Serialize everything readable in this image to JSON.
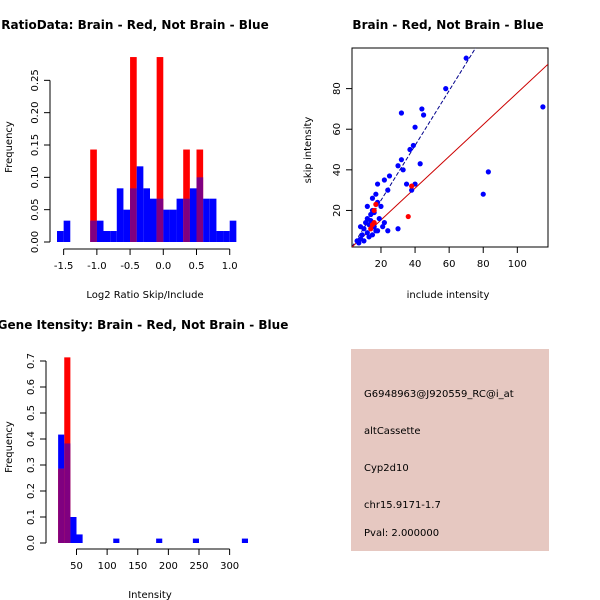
{
  "colors": {
    "red": "#ff0000",
    "blue": "#0000ff",
    "overlap": "#800080",
    "info_bg": "#e6c8c1",
    "pval": "#990000",
    "line_blue": "#00008b",
    "line_red": "#cc0000"
  },
  "chart_data": [
    {
      "type": "bar",
      "kind": "overlaid-histogram",
      "title": "RatioData: Brain - Red, Not Brain - Blue",
      "xlabel": "Log2 Ratio Skip/Include",
      "ylabel": "Frequency",
      "xlim": [
        -1.6,
        1.2
      ],
      "ylim": [
        0,
        0.3
      ],
      "bin_width": 0.1,
      "xticks": [
        -1.5,
        -1.0,
        -0.5,
        0.0,
        0.5,
        1.0
      ],
      "xtick_labels": [
        "-1.5",
        "-1.0",
        "-0.5",
        "0.0",
        "0.5",
        "1.0"
      ],
      "yticks": [
        0,
        0.05,
        0.1,
        0.15,
        0.2,
        0.25
      ],
      "ytick_labels": [
        "0.00",
        "0.05",
        "0.10",
        "0.15",
        "0.20",
        "0.25"
      ],
      "series": [
        {
          "name": "Not Brain",
          "color": "blue",
          "bins_start": [
            -1.6,
            -1.5,
            -1.4,
            -1.3,
            -1.2,
            -1.1,
            -1.0,
            -0.9,
            -0.8,
            -0.7,
            -0.6,
            -0.5,
            -0.4,
            -0.3,
            -0.2,
            -0.1,
            0.0,
            0.1,
            0.2,
            0.3,
            0.4,
            0.5,
            0.6,
            0.7,
            0.8,
            0.9,
            1.0,
            1.1
          ],
          "values": [
            0.017,
            0.033,
            0,
            0,
            0,
            0.033,
            0.033,
            0.017,
            0.017,
            0.083,
            0.05,
            0.083,
            0.117,
            0.083,
            0.067,
            0.067,
            0.05,
            0.05,
            0.067,
            0.067,
            0.083,
            0.1,
            0.067,
            0.067,
            0.017,
            0.017,
            0.033,
            0
          ]
        },
        {
          "name": "Brain",
          "color": "red",
          "bins_start": [
            -1.1,
            -0.5,
            -0.1,
            0.3,
            0.5
          ],
          "values": [
            0.143,
            0.286,
            0.286,
            0.143,
            0.143
          ]
        }
      ]
    },
    {
      "type": "scatter",
      "title": "Brain - Red, Not Brain - Blue",
      "xlabel": "include intensity",
      "ylabel": "skip intensity",
      "xlim": [
        3,
        118
      ],
      "ylim": [
        2,
        100
      ],
      "xticks": [
        20,
        40,
        60,
        80,
        100
      ],
      "xtick_labels": [
        "20",
        "40",
        "60",
        "80",
        "100"
      ],
      "yticks": [
        20,
        40,
        60,
        80
      ],
      "ytick_labels": [
        "20",
        "40",
        "60",
        "80"
      ],
      "series": [
        {
          "name": "Not Brain",
          "color": "blue",
          "points": [
            [
              70,
              95
            ],
            [
              115,
              71
            ],
            [
              58,
              80
            ],
            [
              44,
              70
            ],
            [
              45,
              67
            ],
            [
              32,
              68
            ],
            [
              40,
              61
            ],
            [
              39,
              52
            ],
            [
              37,
              50
            ],
            [
              32,
              45
            ],
            [
              33,
              40
            ],
            [
              30,
              42
            ],
            [
              43,
              43
            ],
            [
              83,
              39
            ],
            [
              80,
              28
            ],
            [
              25,
              37
            ],
            [
              22,
              35
            ],
            [
              18,
              33
            ],
            [
              24,
              30
            ],
            [
              35,
              33
            ],
            [
              40,
              33
            ],
            [
              38,
              30
            ],
            [
              17,
              28
            ],
            [
              15,
              26
            ],
            [
              18,
              24
            ],
            [
              12,
              22
            ],
            [
              20,
              22
            ],
            [
              15,
              20
            ],
            [
              19,
              16
            ],
            [
              14,
              15
            ],
            [
              22,
              14
            ],
            [
              11,
              14
            ],
            [
              13,
              13
            ],
            [
              16,
              12
            ],
            [
              8,
              12
            ],
            [
              10,
              11
            ],
            [
              18,
              10
            ],
            [
              24,
              10
            ],
            [
              12,
              9
            ],
            [
              15,
              8
            ],
            [
              9,
              8
            ],
            [
              13,
              7
            ],
            [
              8,
              6
            ],
            [
              6,
              5
            ],
            [
              10,
              5
            ],
            [
              7,
              4
            ],
            [
              17,
              10
            ],
            [
              30,
              11
            ],
            [
              21,
              12
            ],
            [
              14,
              18
            ],
            [
              16,
              19
            ],
            [
              12,
              16
            ]
          ]
        },
        {
          "name": "Brain",
          "color": "red",
          "points": [
            [
              36,
              17
            ],
            [
              38,
              32
            ],
            [
              17,
              23
            ],
            [
              16,
              20
            ],
            [
              14,
              11
            ],
            [
              15,
              13
            ],
            [
              16,
              14
            ]
          ]
        }
      ],
      "lines": [
        {
          "color": "line_blue",
          "from": [
            3,
            2
          ],
          "to": [
            77,
            102
          ]
        },
        {
          "color": "line_red",
          "from": [
            3,
            2
          ],
          "to": [
            118,
            92
          ]
        }
      ]
    },
    {
      "type": "bar",
      "kind": "overlaid-histogram",
      "title": "Gene Itensity: Brain - Red, Not Brain - Blue",
      "xlabel": "Intensity",
      "ylabel": "Frequency",
      "xlim": [
        10,
        330
      ],
      "ylim": [
        0,
        0.75
      ],
      "bin_width": 10,
      "xticks": [
        50,
        100,
        150,
        200,
        250,
        300
      ],
      "xtick_labels": [
        "50",
        "100",
        "150",
        "200",
        "250",
        "300"
      ],
      "yticks": [
        0,
        0.1,
        0.2,
        0.3,
        0.4,
        0.5,
        0.6,
        0.7
      ],
      "ytick_labels": [
        "0.0",
        "0.1",
        "0.2",
        "0.3",
        "0.4",
        "0.5",
        "0.6",
        "0.7"
      ],
      "series": [
        {
          "name": "Not Brain",
          "color": "blue",
          "bins_start": [
            20,
            30,
            40,
            50,
            60,
            110,
            180,
            240,
            320
          ],
          "values": [
            0.417,
            0.383,
            0.1,
            0.033,
            0,
            0.017,
            0.017,
            0.017,
            0.017
          ]
        },
        {
          "name": "Brain",
          "color": "red",
          "bins_start": [
            20,
            30
          ],
          "values": [
            0.286,
            0.714
          ]
        }
      ]
    }
  ],
  "info_panel": {
    "probe_id": "G6948963@J920559_RC@i_at",
    "event_type": "altCassette",
    "gene": "Cyp2d10",
    "location": "chr15.9171-1.7",
    "pval": "Pval: 2.000000"
  }
}
